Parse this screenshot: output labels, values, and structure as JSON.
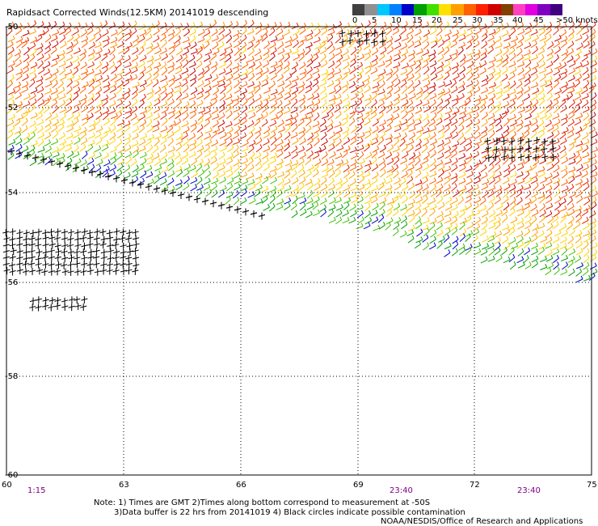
{
  "title": "Rapidsact Corrected Winds(12.5KM) 20141019 descending",
  "legend": {
    "labels": [
      "0",
      "5",
      "10",
      "15",
      "20",
      "25",
      "30",
      "35",
      "40",
      "45",
      ">50 knots"
    ],
    "colors": [
      "#404040",
      "#909090",
      "#00c8ff",
      "#0080ff",
      "#0000c8",
      "#00a000",
      "#40e000",
      "#ffe000",
      "#ffa000",
      "#ff6000",
      "#ff2000",
      "#d00000",
      "#804000",
      "#ff40c0",
      "#e000e0",
      "#8000c0",
      "#400080"
    ]
  },
  "lat_labels": [
    "-50",
    "-52",
    "-54",
    "-56",
    "-58",
    "-60"
  ],
  "lon_labels": [
    "60",
    "63",
    "66",
    "69",
    "72",
    "75"
  ],
  "time_labels": [
    "1:15",
    "23:40",
    "23:40"
  ],
  "notes": {
    "line1": "Note: 1) Times are GMT 2)Times along bottom correspond to measurement at -50S",
    "line2": "3)Data buffer is 22 hrs from 20141019 4) Black circles indicate possible contamination",
    "line3": "NOAA/NESDIS/Office of Research and Applications"
  }
}
